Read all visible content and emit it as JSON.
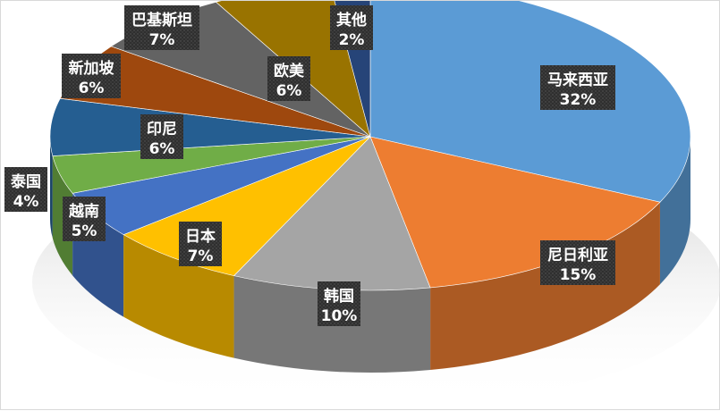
{
  "chart_data": {
    "type": "pie",
    "title": "",
    "categories": [
      "马来西亚",
      "尼日利亚",
      "韩国",
      "日本",
      "越南",
      "泰国",
      "印尼",
      "新加坡",
      "巴基斯坦",
      "欧美",
      "其他"
    ],
    "values": [
      32,
      15,
      10,
      7,
      5,
      4,
      6,
      6,
      7,
      6,
      2
    ],
    "value_labels": [
      "32%",
      "15%",
      "10%",
      "7%",
      "5%",
      "4%",
      "6%",
      "6%",
      "7%",
      "6%",
      "2%"
    ],
    "unit": "%",
    "legend": "none",
    "colors": [
      "#5b9bd5",
      "#ed7d31",
      "#a5a5a5",
      "#ffc000",
      "#4472c4",
      "#70ad47",
      "#255e91",
      "#9e480e",
      "#636363",
      "#997300",
      "#264478"
    ],
    "label_style": {
      "background": "#3a3a3a",
      "text_color": "#ffffff"
    }
  }
}
